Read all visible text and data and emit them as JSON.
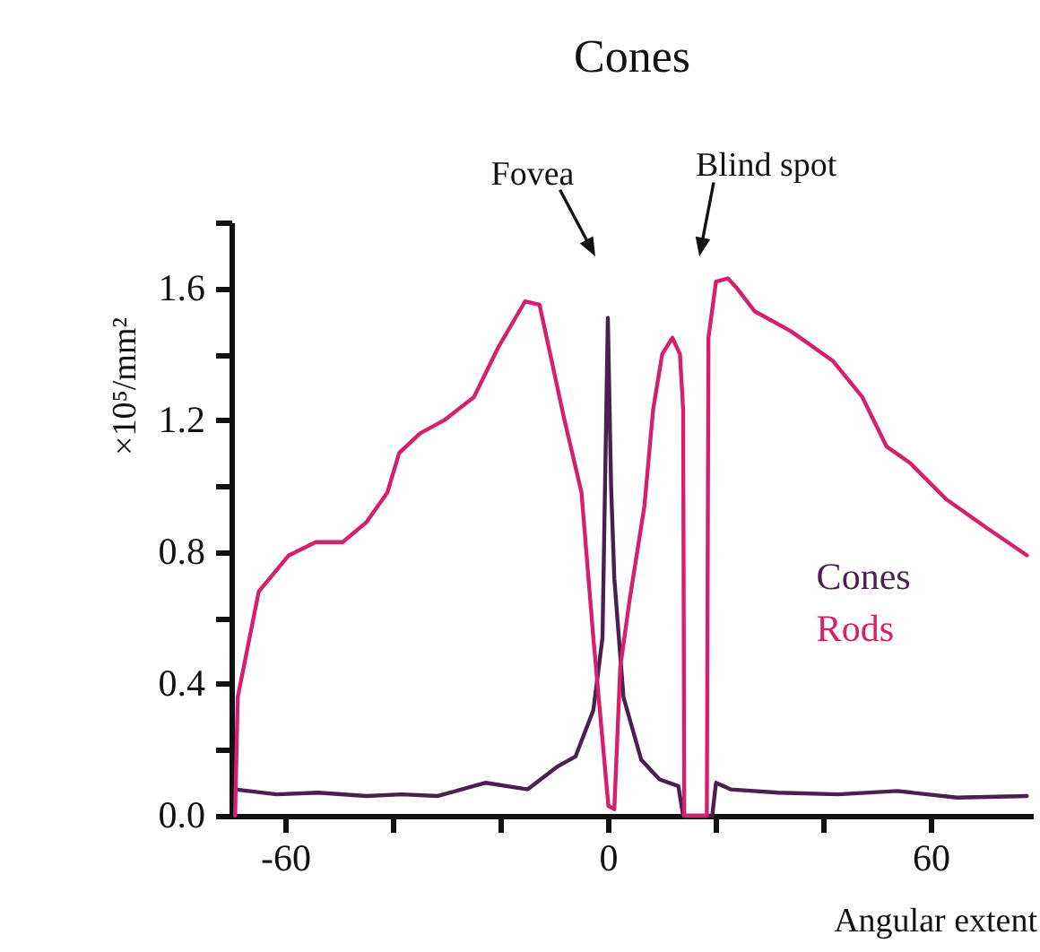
{
  "chart_data": {
    "type": "line",
    "title": "Cones",
    "xlabel": "Angular extent",
    "ylabel": "×10⁵/mm²",
    "annotations": [
      "Fovea",
      "Blind spot"
    ],
    "xlim": [
      -70,
      79
    ],
    "ylim": [
      0,
      1.8
    ],
    "xticks": [
      -60,
      {
        "value": -40,
        "label": null
      },
      {
        "value": -20,
        "label": null
      },
      0,
      {
        "value": 20,
        "label": null
      },
      {
        "value": 40,
        "label": null
      },
      60
    ],
    "yticks": [
      {
        "value": 0,
        "label": "0.0"
      },
      {
        "value": 0.2,
        "label": null
      },
      0.4,
      {
        "value": 0.6,
        "label": null
      },
      0.8,
      {
        "value": 1.0,
        "label": null
      },
      1.2,
      {
        "value": 1.4,
        "label": null
      },
      1.6,
      {
        "value": 1.8,
        "label": null
      }
    ],
    "grid": false,
    "legend": "right",
    "marker": "none",
    "line_style": "solid",
    "series": [
      {
        "name": "Cones",
        "color": "#4b1f52",
        "x": [
          -69.3,
          -61.6,
          -53.8,
          -44.9,
          -38.3,
          -31.6,
          -22.7,
          -14.9,
          -9.3,
          -6,
          -2.7,
          -1,
          0,
          0.6,
          1.2,
          2.9,
          6.2,
          9.6,
          13.1,
          14,
          19.4,
          20.1,
          22.8,
          31.7,
          42.8,
          53.8,
          64.9,
          77.9
        ],
        "values": [
          0.08,
          0.065,
          0.07,
          0.06,
          0.065,
          0.06,
          0.1,
          0.08,
          0.15,
          0.18,
          0.32,
          0.54,
          1.51,
          1.0,
          0.72,
          0.36,
          0.17,
          0.11,
          0.09,
          0,
          0,
          0.1,
          0.08,
          0.07,
          0.065,
          0.075,
          0.055,
          0.06
        ]
      },
      {
        "name": "Rods",
        "color": "#d6206e",
        "x": [
          -69.3,
          -68.8,
          -64.9,
          -59.3,
          -54.3,
          -49.3,
          -44.9,
          -41,
          -38.8,
          -34.9,
          -30.4,
          -24.9,
          -20.4,
          -15.4,
          -12.7,
          -8.2,
          -4.9,
          -2.7,
          -1,
          0.1,
          1.2,
          2.3,
          4,
          6.8,
          8.4,
          10.1,
          12,
          13.4,
          14,
          14.2,
          18.4,
          18.7,
          20.1,
          22.3,
          24,
          27.3,
          34,
          41.8,
          47.3,
          51.8,
          56.2,
          62.9,
          70.7,
          77.9
        ],
        "values": [
          0,
          0.36,
          0.68,
          0.79,
          0.83,
          0.83,
          0.89,
          0.98,
          1.1,
          1.16,
          1.2,
          1.27,
          1.42,
          1.56,
          1.55,
          1.21,
          0.98,
          0.54,
          0.23,
          0.03,
          0.02,
          0.45,
          0.65,
          0.94,
          1.23,
          1.4,
          1.45,
          1.4,
          1.23,
          0,
          0,
          1.45,
          1.62,
          1.63,
          1.6,
          1.53,
          1.47,
          1.38,
          1.27,
          1.12,
          1.07,
          0.96,
          0.87,
          0.79
        ]
      }
    ]
  }
}
